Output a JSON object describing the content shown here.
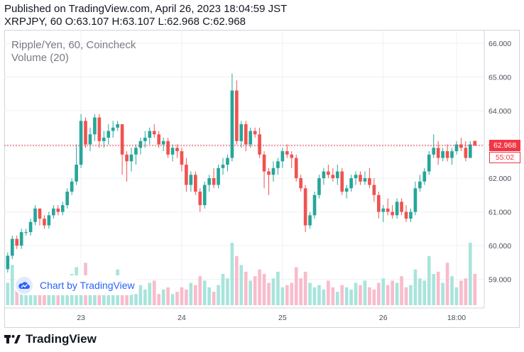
{
  "header": {
    "published": "Published on TradingView.com, April 26, 2023 18:04:59 JST",
    "ohlc": "XRPJPY, 60 O:63.107 H:63.107 L:62.968 C:62.968"
  },
  "legend": {
    "title": "Ripple/Yen, 60, Coincheck",
    "volume": "Volume (20)"
  },
  "watermark": {
    "text": "Chart by TradingView",
    "icon": "tradingview-cloud-icon"
  },
  "footer": {
    "text": "TradingView",
    "icon": "tradingview-logo-icon"
  },
  "price_tag": {
    "value": "62.968",
    "countdown": "55:02"
  },
  "colors": {
    "up": "#26a69a",
    "down": "#ef5350",
    "up_volume": "#a8e4dc",
    "down_volume": "#f8bccc",
    "grid": "#eef0f3",
    "price_line": "#f23645",
    "text": "#131722",
    "axis_text": "#4a4e59"
  },
  "chart_data": {
    "type": "candlestick",
    "symbol": "XRPJPY",
    "interval": "60",
    "exchange": "Coincheck",
    "y_axis": {
      "ticks": [
        "59.000",
        "60.000",
        "61.000",
        "62.000",
        "63.000",
        "64.000",
        "65.000",
        "66.000"
      ],
      "range": [
        58.15,
        66.4
      ]
    },
    "x_axis": {
      "ticks": [
        {
          "label": "23",
          "index": 16
        },
        {
          "label": "24",
          "index": 38
        },
        {
          "label": "25",
          "index": 60
        },
        {
          "label": "26",
          "index": 82
        },
        {
          "label": "18:00",
          "index": 98
        }
      ]
    },
    "last_price": 62.968,
    "candles": [
      [
        59.3,
        59.8,
        59.2,
        59.7
      ],
      [
        59.7,
        60.3,
        59.6,
        60.2
      ],
      [
        60.2,
        60.3,
        59.9,
        60.0
      ],
      [
        60.0,
        60.5,
        59.9,
        60.4
      ],
      [
        60.4,
        60.5,
        60.3,
        60.4
      ],
      [
        60.4,
        60.8,
        60.3,
        60.7
      ],
      [
        60.7,
        61.2,
        60.6,
        61.1
      ],
      [
        61.1,
        61.1,
        60.6,
        60.8
      ],
      [
        60.8,
        60.9,
        60.5,
        60.6
      ],
      [
        60.6,
        61.0,
        60.5,
        60.9
      ],
      [
        60.9,
        61.2,
        60.8,
        61.1
      ],
      [
        61.1,
        61.2,
        60.9,
        61.0
      ],
      [
        61.0,
        61.3,
        60.9,
        61.2
      ],
      [
        61.2,
        61.7,
        61.1,
        61.6
      ],
      [
        61.6,
        62.0,
        61.5,
        61.9
      ],
      [
        61.9,
        63.0,
        61.8,
        62.4
      ],
      [
        62.4,
        63.9,
        62.3,
        63.7
      ],
      [
        63.7,
        63.8,
        62.9,
        63.0
      ],
      [
        63.0,
        63.5,
        62.8,
        63.3
      ],
      [
        63.3,
        63.9,
        63.1,
        63.8
      ],
      [
        63.8,
        63.9,
        62.9,
        63.1
      ],
      [
        63.1,
        63.4,
        62.9,
        63.2
      ],
      [
        63.2,
        63.6,
        63.0,
        63.4
      ],
      [
        63.4,
        63.7,
        63.2,
        63.5
      ],
      [
        63.5,
        63.7,
        63.4,
        63.6
      ],
      [
        63.6,
        63.6,
        62.1,
        62.7
      ],
      [
        62.7,
        62.8,
        61.9,
        62.5
      ],
      [
        62.5,
        62.9,
        62.2,
        62.7
      ],
      [
        62.7,
        63.0,
        62.4,
        62.9
      ],
      [
        62.9,
        63.2,
        62.7,
        63.1
      ],
      [
        63.1,
        63.4,
        62.9,
        63.2
      ],
      [
        63.2,
        63.5,
        63.0,
        63.4
      ],
      [
        63.4,
        63.6,
        63.2,
        63.3
      ],
      [
        63.3,
        63.4,
        62.9,
        63.0
      ],
      [
        63.0,
        63.2,
        62.8,
        63.1
      ],
      [
        63.1,
        63.2,
        62.6,
        62.7
      ],
      [
        62.7,
        63.0,
        62.5,
        62.9
      ],
      [
        62.9,
        63.0,
        62.6,
        62.8
      ],
      [
        62.8,
        62.9,
        62.2,
        62.4
      ],
      [
        62.4,
        62.6,
        61.6,
        61.8
      ],
      [
        61.8,
        62.2,
        61.6,
        62.1
      ],
      [
        62.1,
        62.2,
        61.5,
        61.6
      ],
      [
        61.6,
        61.7,
        61.0,
        61.2
      ],
      [
        61.2,
        61.9,
        61.1,
        61.8
      ],
      [
        61.8,
        62.1,
        61.6,
        62.0
      ],
      [
        62.0,
        62.3,
        61.7,
        61.8
      ],
      [
        61.8,
        62.4,
        61.7,
        62.3
      ],
      [
        62.3,
        62.6,
        62.1,
        62.4
      ],
      [
        62.4,
        62.7,
        62.2,
        62.6
      ],
      [
        62.6,
        65.1,
        62.5,
        64.6
      ],
      [
        64.6,
        64.9,
        63.0,
        63.1
      ],
      [
        63.1,
        63.7,
        62.9,
        63.6
      ],
      [
        63.6,
        63.7,
        62.8,
        63.0
      ],
      [
        63.0,
        63.5,
        62.9,
        63.4
      ],
      [
        63.4,
        63.5,
        63.2,
        63.3
      ],
      [
        63.3,
        63.5,
        62.6,
        62.7
      ],
      [
        62.7,
        62.8,
        61.7,
        62.2
      ],
      [
        62.2,
        62.3,
        61.5,
        62.1
      ],
      [
        62.1,
        62.5,
        61.9,
        62.3
      ],
      [
        62.3,
        62.6,
        62.1,
        62.5
      ],
      [
        62.5,
        62.9,
        62.3,
        62.8
      ],
      [
        62.8,
        63.0,
        62.6,
        62.7
      ],
      [
        62.7,
        62.8,
        62.3,
        62.6
      ],
      [
        62.6,
        62.7,
        61.9,
        62.0
      ],
      [
        62.0,
        62.1,
        61.6,
        61.7
      ],
      [
        61.7,
        61.8,
        60.4,
        60.6
      ],
      [
        60.6,
        61.0,
        60.5,
        60.9
      ],
      [
        60.9,
        61.6,
        60.8,
        61.5
      ],
      [
        61.5,
        62.1,
        61.4,
        62.0
      ],
      [
        62.0,
        62.3,
        61.8,
        62.2
      ],
      [
        62.2,
        62.4,
        62.0,
        62.1
      ],
      [
        62.1,
        62.3,
        61.9,
        62.0
      ],
      [
        62.0,
        62.4,
        61.8,
        62.2
      ],
      [
        62.2,
        62.3,
        61.5,
        61.6
      ],
      [
        61.6,
        61.8,
        61.4,
        61.7
      ],
      [
        61.7,
        62.1,
        61.6,
        62.0
      ],
      [
        62.0,
        62.2,
        61.8,
        62.1
      ],
      [
        62.1,
        62.2,
        61.8,
        61.9
      ],
      [
        61.9,
        62.2,
        61.8,
        62.0
      ],
      [
        62.0,
        62.3,
        61.7,
        61.8
      ],
      [
        61.8,
        62.0,
        61.3,
        61.5
      ],
      [
        61.5,
        61.6,
        60.8,
        61.0
      ],
      [
        61.0,
        61.2,
        60.7,
        61.1
      ],
      [
        61.1,
        61.4,
        60.9,
        61.0
      ],
      [
        61.0,
        61.2,
        60.8,
        60.9
      ],
      [
        60.9,
        61.4,
        60.8,
        61.3
      ],
      [
        61.3,
        61.4,
        60.9,
        61.0
      ],
      [
        61.0,
        61.2,
        60.7,
        60.8
      ],
      [
        60.8,
        61.1,
        60.7,
        61.0
      ],
      [
        61.0,
        61.9,
        60.9,
        61.7
      ],
      [
        61.7,
        62.1,
        61.6,
        61.9
      ],
      [
        61.9,
        62.3,
        61.8,
        62.2
      ],
      [
        62.2,
        62.8,
        62.1,
        62.7
      ],
      [
        62.7,
        63.3,
        62.6,
        62.9
      ],
      [
        62.9,
        63.1,
        62.4,
        62.6
      ],
      [
        62.6,
        62.9,
        62.5,
        62.8
      ],
      [
        62.8,
        63.0,
        62.5,
        62.6
      ],
      [
        62.6,
        62.9,
        62.4,
        62.8
      ],
      [
        62.8,
        63.1,
        62.7,
        63.0
      ],
      [
        63.0,
        63.2,
        62.8,
        62.9
      ],
      [
        62.9,
        63.1,
        62.5,
        62.6
      ],
      [
        62.6,
        63.1,
        62.6,
        63.0
      ],
      [
        63.107,
        63.107,
        62.968,
        62.968
      ]
    ],
    "volume": [
      10,
      18,
      7,
      9,
      7,
      6,
      7,
      8,
      5,
      6,
      5,
      7,
      8,
      12,
      14,
      17,
      11,
      19,
      8,
      10,
      11,
      9,
      7,
      10,
      16,
      13,
      6,
      8,
      5,
      9,
      7,
      10,
      11,
      5,
      7,
      8,
      5,
      6,
      8,
      7,
      10,
      9,
      13,
      11,
      8,
      6,
      9,
      14,
      12,
      28,
      22,
      18,
      15,
      11,
      13,
      16,
      14,
      10,
      12,
      15,
      8,
      9,
      10,
      17,
      12,
      15,
      10,
      8,
      9,
      7,
      11,
      8,
      6,
      9,
      8,
      7,
      10,
      9,
      11,
      8,
      7,
      10,
      12,
      9,
      11,
      10,
      13,
      8,
      9,
      16,
      12,
      11,
      22,
      14,
      15,
      10,
      19,
      13,
      8,
      11,
      12,
      28,
      14
    ]
  }
}
